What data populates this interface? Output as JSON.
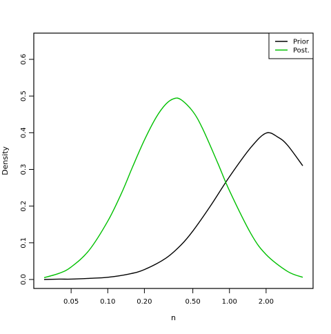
{
  "chart_data": {
    "type": "line",
    "title": "",
    "xlabel": "n",
    "ylabel": "Density",
    "x_scale": "log",
    "xlim": [
      0.025,
      4.5
    ],
    "ylim": [
      0,
      0.65
    ],
    "xticks": [
      0.05,
      0.1,
      0.2,
      0.5,
      1.0,
      2.0
    ],
    "xtick_labels": [
      "0.05",
      "0.10",
      "0.20",
      "0.50",
      "1.00",
      "2.00"
    ],
    "yticks": [
      0.0,
      0.1,
      0.2,
      0.3,
      0.4,
      0.5,
      0.6
    ],
    "ytick_labels": [
      "0.0",
      "0.1",
      "0.2",
      "0.3",
      "0.4",
      "0.5",
      "0.6"
    ],
    "grid": false,
    "legend_position": "top-right",
    "series": [
      {
        "name": "Prior",
        "color": "#000000",
        "x": [
          0.03,
          0.04,
          0.05,
          0.07,
          0.1,
          0.15,
          0.2,
          0.3,
          0.4,
          0.5,
          0.7,
          1.0,
          1.5,
          2.0,
          2.5,
          3.0,
          4.0
        ],
        "y": [
          0.0,
          0.001,
          0.001,
          0.003,
          0.006,
          0.015,
          0.027,
          0.058,
          0.094,
          0.132,
          0.201,
          0.28,
          0.36,
          0.399,
          0.388,
          0.366,
          0.31
        ]
      },
      {
        "name": "Post.",
        "color": "#00c000",
        "x": [
          0.03,
          0.04,
          0.05,
          0.07,
          0.1,
          0.13,
          0.16,
          0.2,
          0.25,
          0.3,
          0.35,
          0.4,
          0.5,
          0.6,
          0.8,
          1.0,
          1.5,
          2.0,
          3.0,
          4.0
        ],
        "y": [
          0.005,
          0.017,
          0.034,
          0.079,
          0.159,
          0.236,
          0.307,
          0.38,
          0.442,
          0.478,
          0.493,
          0.49,
          0.458,
          0.412,
          0.318,
          0.242,
          0.125,
          0.068,
          0.022,
          0.006
        ]
      }
    ]
  }
}
